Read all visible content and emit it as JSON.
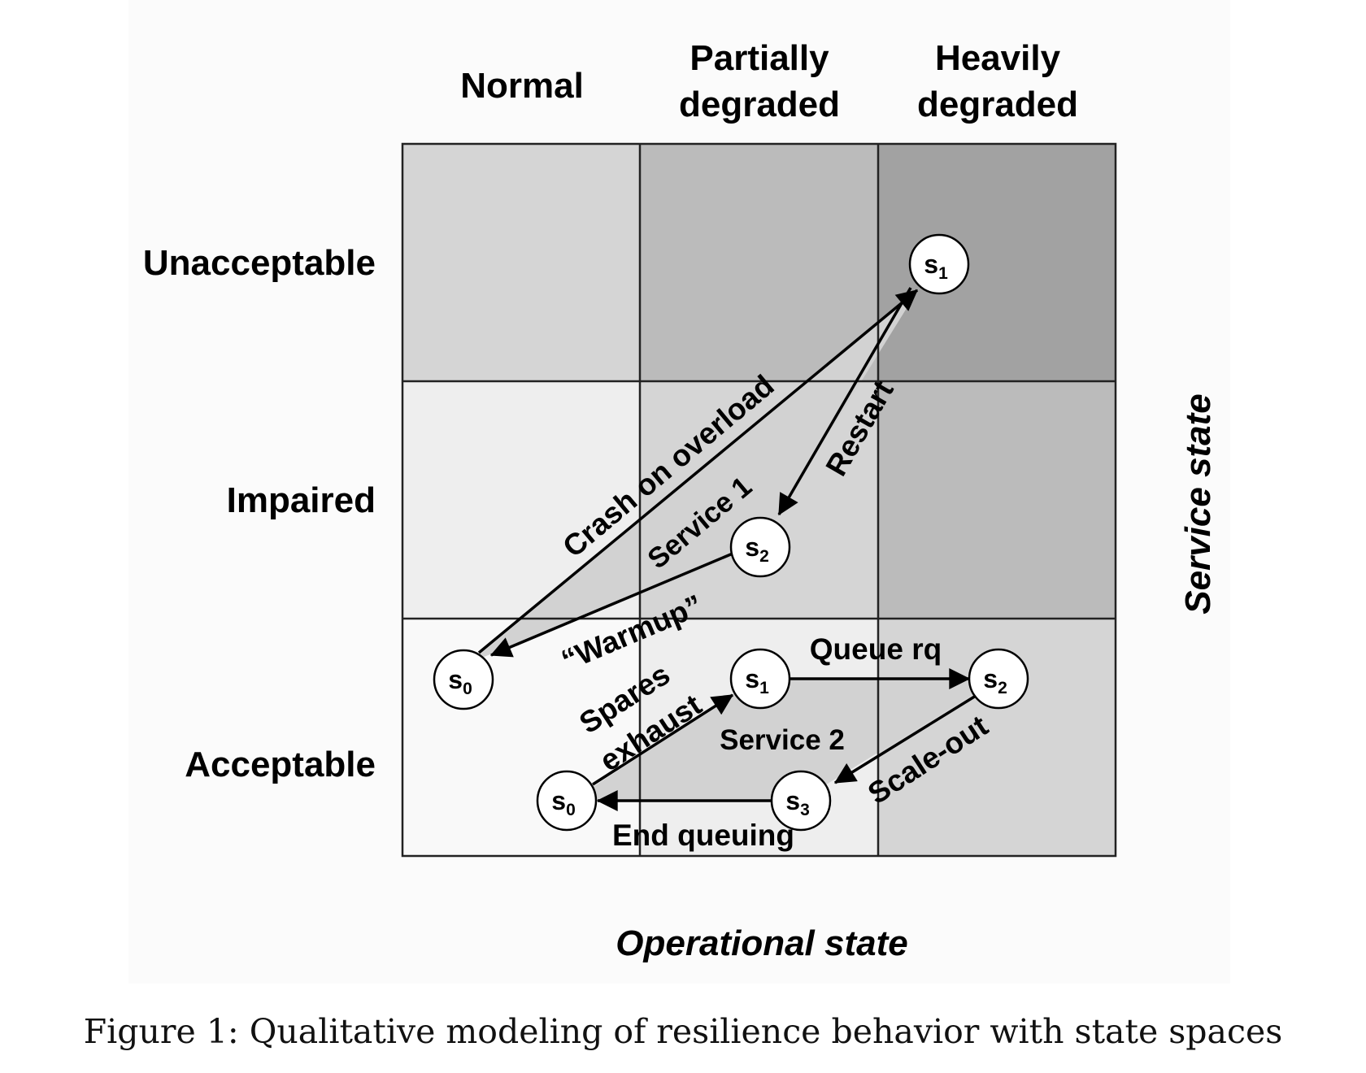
{
  "columns": [
    "Normal",
    "Partially degraded",
    "Heavily degraded"
  ],
  "rows": [
    "Unacceptable",
    "Impaired",
    "Acceptable"
  ],
  "axes": {
    "x_label": "Operational state",
    "y_label": "Service state"
  },
  "cell_shades": [
    [
      "#d5d5d5",
      "#bbbbbb",
      "#a2a2a2"
    ],
    [
      "#eeeeee",
      "#d5d5d5",
      "#bbbbbb"
    ],
    [
      "#f9f9f9",
      "#eeeeee",
      "#d5d5d5"
    ]
  ],
  "groups": {
    "service1": {
      "label": "Service 1",
      "region_fill": "#d2d2d2",
      "states": [
        {
          "letter": "s",
          "sub": "0"
        },
        {
          "letter": "s",
          "sub": "1"
        },
        {
          "letter": "s",
          "sub": "2"
        }
      ],
      "transitions": [
        "Crash on overload",
        "Restart",
        "“Warmup”"
      ]
    },
    "service2": {
      "label": "Service 2",
      "region_fill": "#d2d2d2",
      "states": [
        {
          "letter": "s",
          "sub": "0"
        },
        {
          "letter": "s",
          "sub": "1"
        },
        {
          "letter": "s",
          "sub": "2"
        },
        {
          "letter": "s",
          "sub": "3"
        }
      ],
      "transitions": {
        "spares_line1": "Spares",
        "spares_line2": "exhaust",
        "queue": "Queue rq",
        "scale": "Scale-out",
        "end": "End queuing"
      }
    }
  },
  "caption": "Figure 1: Qualitative modeling of resilience behavior with state spaces"
}
